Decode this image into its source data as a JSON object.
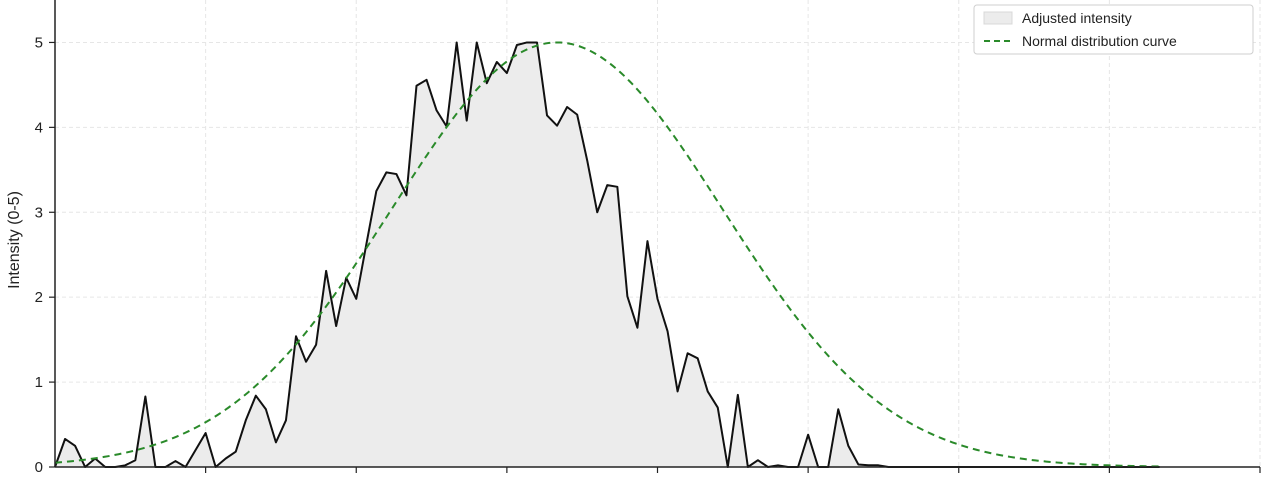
{
  "chart_data": {
    "type": "area",
    "title": "",
    "xlabel": "",
    "ylabel": "Intensity (0-5)",
    "ylim": [
      0,
      5.5
    ],
    "xlim": [
      0,
      120
    ],
    "yticks": [
      0,
      1,
      2,
      3,
      4,
      5
    ],
    "grid": true,
    "legend_position": "top-right",
    "colors": {
      "fill": "#ececec",
      "line": "#111111",
      "normal": "#2a8a2a",
      "grid": "#e6e6e6"
    },
    "series": [
      {
        "name": "Adjusted intensity",
        "kind": "area",
        "x": [
          0,
          1,
          2,
          3,
          4,
          5,
          6,
          7,
          8,
          9,
          10,
          11,
          12,
          13,
          14,
          15,
          16,
          17,
          18,
          19,
          20,
          21,
          22,
          23,
          24,
          25,
          26,
          27,
          28,
          29,
          30,
          31,
          32,
          33,
          34,
          35,
          36,
          37,
          38,
          39,
          40,
          41,
          42,
          43,
          44,
          45,
          46,
          47,
          48,
          49,
          50,
          51,
          52,
          53,
          54,
          55,
          56,
          57,
          58,
          59,
          60,
          61,
          62,
          63,
          64,
          65,
          66,
          67,
          68,
          69,
          70,
          71,
          72,
          73,
          74,
          75,
          76,
          77,
          78,
          79,
          80,
          81,
          82,
          83,
          84,
          85,
          86,
          87,
          88,
          89,
          90,
          91,
          92,
          93,
          94,
          95,
          96,
          97,
          98,
          99,
          100,
          101,
          102,
          103,
          104,
          105,
          106,
          107,
          108,
          109,
          110
        ],
        "values": [
          0,
          0.33,
          0.25,
          0,
          0.1,
          0,
          0,
          0.02,
          0.08,
          0.83,
          0,
          0,
          0.07,
          0,
          0.2,
          0.4,
          0,
          0.1,
          0.18,
          0.55,
          0.84,
          0.68,
          0.29,
          0.55,
          1.54,
          1.24,
          1.44,
          2.31,
          1.66,
          2.23,
          1.98,
          2.62,
          3.25,
          3.47,
          3.45,
          3.2,
          4.49,
          4.56,
          4.2,
          4.01,
          5.0,
          4.08,
          5.0,
          4.52,
          4.77,
          4.64,
          4.97,
          5.0,
          5.0,
          4.14,
          4.02,
          4.24,
          4.15,
          3.61,
          3.0,
          3.32,
          3.3,
          2.01,
          1.64,
          2.66,
          1.98,
          1.6,
          0.89,
          1.34,
          1.28,
          0.89,
          0.7,
          0,
          0.85,
          0,
          0.08,
          0,
          0.02,
          0,
          0,
          0.38,
          0,
          0,
          0.68,
          0.25,
          0.03,
          0.02,
          0.02,
          0,
          0,
          0,
          0,
          0,
          0,
          0,
          0,
          0,
          0,
          0,
          0,
          0,
          0,
          0,
          0,
          0,
          0,
          0,
          0,
          0,
          0,
          0,
          0,
          0,
          0,
          0,
          0
        ]
      },
      {
        "name": "Normal distribution curve",
        "kind": "normal-curve",
        "peak": 5.0,
        "mean": 50,
        "sd": 16.5
      }
    ]
  }
}
